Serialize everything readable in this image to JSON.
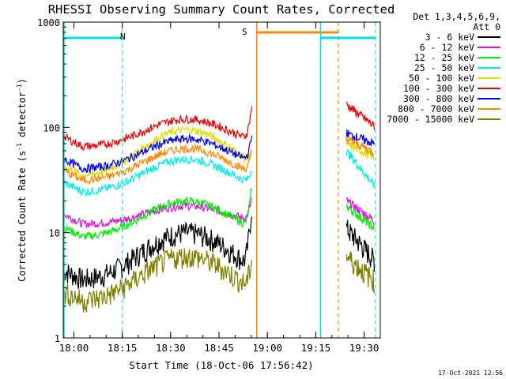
{
  "chart_data": {
    "type": "line",
    "title": "RHESSI Observing Summary Count Rates, Corrected",
    "xlabel": "Start Time (18-Oct-06 17:56:42)",
    "ylabel": "Corrected Count Rate (s",
    "ylabel_sup1": "-1",
    "ylabel_mid": " detector",
    "ylabel_sup2": "-1",
    "ylabel_end": ")",
    "y_scale": "log",
    "ylim": [
      1,
      1000
    ],
    "y_ticks": [
      {
        "v": 1,
        "label": "1"
      },
      {
        "v": 10,
        "label": "10"
      },
      {
        "v": 100,
        "label": "100"
      },
      {
        "v": 1000,
        "label": "1000"
      }
    ],
    "xlim": [
      "17:56:42",
      "19:35:00"
    ],
    "x_ticks": [
      "18:00",
      "18:15",
      "18:30",
      "18:45",
      "19:00",
      "19:15",
      "19:30"
    ],
    "legend_header": [
      "Det 1,3,4,5,6,9,",
      "Att 0"
    ],
    "legend_placement": "right",
    "series": [
      {
        "name": "3 - 6 keV",
        "color": "#000000",
        "base": 3.5,
        "peak": 10,
        "pre": 16,
        "post": 11,
        "tail": 5.5
      },
      {
        "name": "6 - 12 keV",
        "color": "#e010e0",
        "base": 12,
        "peak": 18,
        "pre": 20,
        "post": 20,
        "tail": 13
      },
      {
        "name": "12 - 25 keV",
        "color": "#00ee00",
        "base": 9,
        "peak": 20,
        "pre": 25,
        "post": 18,
        "tail": 11
      },
      {
        "name": "25 - 50 keV",
        "color": "#00eeee",
        "base": 24,
        "peak": 50,
        "pre": 35,
        "post": 60,
        "tail": 28
      },
      {
        "name": "50 - 100 keV",
        "color": "#dddd00",
        "base": 34,
        "peak": 95,
        "pre": 45,
        "post": 70,
        "tail": 52
      },
      {
        "name": "100 - 300 keV",
        "color": "#ee0000",
        "base": 65,
        "peak": 120,
        "pre": 150,
        "post": 165,
        "tail": 103
      },
      {
        "name": "300 - 800 keV",
        "color": "#0000ee",
        "base": 40,
        "peak": 78,
        "pre": 75,
        "post": 88,
        "tail": 70
      },
      {
        "name": "800 - 7000 keV",
        "color": "#ff8800",
        "base": 31,
        "peak": 63,
        "pre": 55,
        "post": 78,
        "tail": 58
      },
      {
        "name": "7000 - 15000 keV",
        "color": "#808000",
        "base": 2.2,
        "peak": 6,
        "pre": 5,
        "post": 6,
        "tail": 3.5
      }
    ],
    "annotations": [
      {
        "label": "N",
        "color": "#00e0e0"
      },
      {
        "label": "S",
        "color": "#ff8800"
      }
    ],
    "footer_timestamp": "17-Oct-2021 12:56"
  },
  "colors": {
    "night": "#00e0e0",
    "saa": "#ff8800"
  }
}
